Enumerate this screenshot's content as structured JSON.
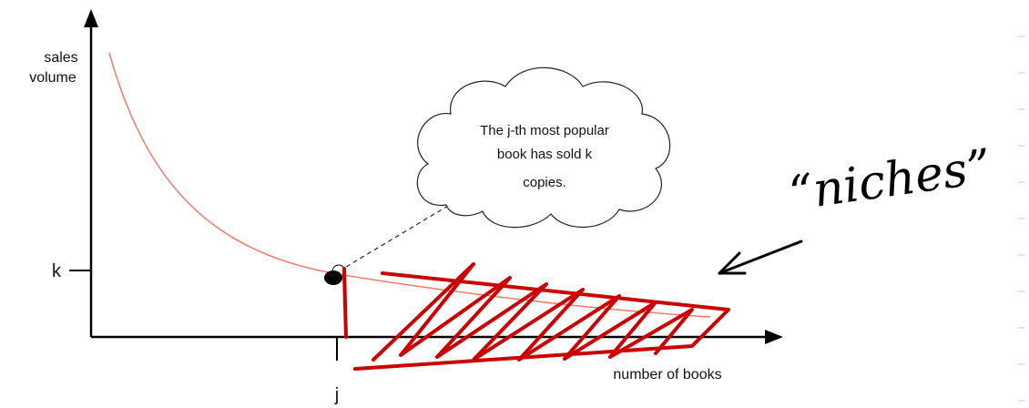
{
  "diagram": {
    "y_axis_label": [
      "sales",
      "volume"
    ],
    "x_axis_label": "number of books",
    "k_label": "k",
    "j_label": "j",
    "callout": [
      "The j-th most popular",
      "book has sold k",
      "copies."
    ],
    "annotation": "“niches”"
  }
}
